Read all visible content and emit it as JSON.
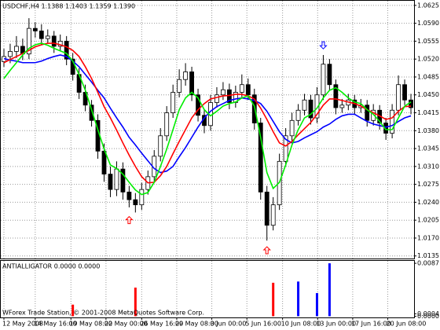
{
  "chart_data": [
    {
      "type": "candlestick",
      "title": "USDCHF,H4 1.1388 1.1403 1.1359 1.1390",
      "x": [
        0,
        1,
        2,
        3,
        4,
        5,
        6,
        7,
        8,
        9,
        10,
        11,
        12,
        13,
        14,
        15,
        16,
        17,
        18,
        19,
        20,
        21,
        22,
        23,
        24,
        25,
        26,
        27,
        28,
        29,
        30,
        31,
        32,
        33,
        34,
        35,
        36,
        37,
        38,
        39,
        40,
        41,
        42,
        43,
        44,
        45,
        46,
        47,
        48,
        49,
        50,
        51,
        52,
        53,
        54,
        55,
        56,
        57,
        58,
        59,
        60,
        61,
        62,
        63,
        64,
        65
      ],
      "open": [
        1.0515,
        1.0525,
        1.0535,
        1.0545,
        1.053,
        1.058,
        1.0575,
        1.056,
        1.0565,
        1.0545,
        1.0555,
        1.052,
        1.049,
        1.0455,
        1.043,
        1.04,
        1.034,
        1.0295,
        1.0265,
        1.0305,
        1.026,
        1.0245,
        1.0235,
        1.0265,
        1.029,
        1.033,
        1.037,
        1.0415,
        1.0455,
        1.048,
        1.0495,
        1.045,
        1.041,
        1.039,
        1.0435,
        1.045,
        1.046,
        1.0435,
        1.0455,
        1.047,
        1.045,
        1.0395,
        1.026,
        1.0195,
        1.0235,
        1.032,
        1.037,
        1.04,
        1.042,
        1.044,
        1.0405,
        1.045,
        1.051,
        1.047,
        1.0425,
        1.043,
        1.044,
        1.0425,
        1.043,
        1.04,
        1.042,
        1.0395,
        1.0375,
        1.042,
        1.047,
        1.044
      ],
      "high": [
        1.054,
        1.055,
        1.0565,
        1.056,
        1.06,
        1.0592,
        1.0588,
        1.0578,
        1.0575,
        1.0568,
        1.0565,
        1.0532,
        1.0502,
        1.047,
        1.044,
        1.0412,
        1.0355,
        1.031,
        1.032,
        1.0318,
        1.0272,
        1.0258,
        1.0278,
        1.0302,
        1.0342,
        1.0385,
        1.0428,
        1.047,
        1.05,
        1.0512,
        1.0505,
        1.0462,
        1.0422,
        1.045,
        1.0465,
        1.0475,
        1.0472,
        1.0468,
        1.049,
        1.0482,
        1.0462,
        1.0405,
        1.0272,
        1.025,
        1.0335,
        1.0385,
        1.0415,
        1.0432,
        1.0452,
        1.045,
        1.0465,
        1.0528,
        1.052,
        1.048,
        1.0442,
        1.0452,
        1.045,
        1.0442,
        1.044,
        1.0432,
        1.043,
        1.0405,
        1.0432,
        1.0488,
        1.048,
        1.0452
      ],
      "low": [
        1.0505,
        1.0512,
        1.0522,
        1.0518,
        1.052,
        1.0562,
        1.0548,
        1.055,
        1.0532,
        1.0535,
        1.0508,
        1.0478,
        1.0442,
        1.0418,
        1.0388,
        1.0325,
        1.028,
        1.025,
        1.0252,
        1.0245,
        1.023,
        1.022,
        1.0225,
        1.0255,
        1.028,
        1.032,
        1.036,
        1.0405,
        1.0445,
        1.0468,
        1.0438,
        1.0398,
        1.0375,
        1.038,
        1.0425,
        1.044,
        1.0422,
        1.0425,
        1.0445,
        1.044,
        1.0382,
        1.0245,
        1.0165,
        1.0185,
        1.0225,
        1.031,
        1.036,
        1.039,
        1.041,
        1.0392,
        1.0395,
        1.044,
        1.0458,
        1.0412,
        1.0415,
        1.042,
        1.0412,
        1.0415,
        1.0388,
        1.039,
        1.0382,
        1.0362,
        1.0365,
        1.041,
        1.043,
        1.0412
      ],
      "close": [
        1.0525,
        1.0535,
        1.0545,
        1.053,
        1.058,
        1.0575,
        1.056,
        1.0565,
        1.0545,
        1.0555,
        1.052,
        1.049,
        1.0455,
        1.043,
        1.04,
        1.034,
        1.0295,
        1.0265,
        1.0305,
        1.026,
        1.0245,
        1.0235,
        1.0265,
        1.029,
        1.033,
        1.037,
        1.0415,
        1.0455,
        1.048,
        1.0495,
        1.045,
        1.041,
        1.039,
        1.0435,
        1.045,
        1.046,
        1.0435,
        1.0455,
        1.047,
        1.045,
        1.0395,
        1.026,
        1.0195,
        1.0235,
        1.032,
        1.037,
        1.04,
        1.042,
        1.044,
        1.0405,
        1.045,
        1.051,
        1.047,
        1.0425,
        1.043,
        1.044,
        1.0425,
        1.043,
        1.04,
        1.042,
        1.0395,
        1.0375,
        1.042,
        1.047,
        1.044,
        1.0425
      ],
      "series": [
        {
          "color": "#0000ff",
          "values": [
            1.0521,
            1.0518,
            1.0516,
            1.0513,
            1.0513,
            1.0513,
            1.0516,
            1.0521,
            1.0525,
            1.0528,
            1.0525,
            1.0516,
            1.0505,
            1.049,
            1.0475,
            1.0459,
            1.0444,
            1.0424,
            1.0405,
            1.0387,
            1.0367,
            1.0352,
            1.0336,
            1.0321,
            1.0306,
            1.0298,
            1.0301,
            1.031,
            1.0329,
            1.0347,
            1.0367,
            1.0387,
            1.0405,
            1.0418,
            1.0427,
            1.0433,
            1.0439,
            1.0442,
            1.0444,
            1.0442,
            1.0439,
            1.0433,
            1.0418,
            1.0398,
            1.0378,
            1.0363,
            1.0356,
            1.0359,
            1.0366,
            1.0372,
            1.0378,
            1.0387,
            1.0393,
            1.0402,
            1.0409,
            1.0412,
            1.0412,
            1.0405,
            1.0398,
            1.0393,
            1.039,
            1.0387,
            1.039,
            1.0398,
            1.0405,
            1.0409
          ]
        },
        {
          "color": "#ff0000",
          "values": [
            1.0513,
            1.0519,
            1.0525,
            1.0531,
            1.0537,
            1.0544,
            1.0548,
            1.0551,
            1.0551,
            1.0548,
            1.0544,
            1.0537,
            1.0525,
            1.0505,
            1.0482,
            1.0455,
            1.0427,
            1.0405,
            1.0381,
            1.0356,
            1.0332,
            1.031,
            1.029,
            1.0278,
            1.0279,
            1.0292,
            1.031,
            1.0335,
            1.0359,
            1.0382,
            1.0405,
            1.0421,
            1.0433,
            1.0442,
            1.0445,
            1.0448,
            1.0449,
            1.0451,
            1.0451,
            1.0448,
            1.0442,
            1.0424,
            1.0402,
            1.0378,
            1.0356,
            1.035,
            1.0359,
            1.0372,
            1.0384,
            1.0396,
            1.0412,
            1.043,
            1.0442,
            1.0442,
            1.0439,
            1.0436,
            1.0433,
            1.0428,
            1.0421,
            1.0415,
            1.0409,
            1.0402,
            1.0405,
            1.0418,
            1.0427,
            1.0428
          ]
        },
        {
          "color": "#00ee00",
          "values": [
            1.0482,
            1.0498,
            1.0513,
            1.0528,
            1.0541,
            1.0548,
            1.0551,
            1.0547,
            1.0541,
            1.0536,
            1.0531,
            1.0516,
            1.049,
            1.0459,
            1.0421,
            1.0382,
            1.0344,
            1.0313,
            1.0306,
            1.0295,
            1.0279,
            1.0264,
            1.0255,
            1.0259,
            1.0279,
            1.031,
            1.0344,
            1.0382,
            1.0421,
            1.0444,
            1.0455,
            1.0444,
            1.0421,
            1.0409,
            1.0418,
            1.0428,
            1.0433,
            1.0436,
            1.0444,
            1.0448,
            1.0428,
            1.0367,
            1.0298,
            1.0267,
            1.0279,
            1.0313,
            1.0352,
            1.0382,
            1.0405,
            1.0412,
            1.0424,
            1.0444,
            1.0459,
            1.0464,
            1.0455,
            1.0444,
            1.0436,
            1.0433,
            1.0421,
            1.0412,
            1.0398,
            1.0382,
            1.0382,
            1.0405,
            1.0428,
            1.0436
          ]
        }
      ],
      "signals": [
        {
          "x": 20,
          "value": 1.0212,
          "color": "#ff0000",
          "direction": "up"
        },
        {
          "x": 42,
          "value": 1.0153,
          "color": "#ff0000",
          "direction": "up"
        },
        {
          "x": 51,
          "value": 1.054,
          "color": "#0000ff",
          "direction": "down"
        }
      ],
      "xlim": [
        -0.5,
        65.5
      ],
      "xticks": [
        {
          "value": 0,
          "label": "12 May 2008"
        },
        {
          "value": 5,
          "label": "14 May 16:00"
        },
        {
          "value": 10.7,
          "label": "19 May 08:00"
        },
        {
          "value": 16.3,
          "label": "22 May 00:00"
        },
        {
          "value": 22,
          "label": "26 May 16:00"
        },
        {
          "value": 27.6,
          "label": "29 May 08:00"
        },
        {
          "value": 33.2,
          "label": "3 Jun 00:00"
        },
        {
          "value": 38.8,
          "label": "5 Jun 16:00"
        },
        {
          "value": 44.5,
          "label": "10 Jun 08:00"
        },
        {
          "value": 50.1,
          "label": "13 Jun 00:00"
        },
        {
          "value": 55.7,
          "label": "17 Jun 16:00"
        },
        {
          "value": 61.3,
          "label": "20 Jun 08:00"
        }
      ],
      "ylim": [
        1.013,
        1.0634
      ],
      "yticks": [
        1.0625,
        {
          "value": 1.059,
          "label": "1.0590"
        },
        1.0555,
        {
          "value": 1.052,
          "label": "1.0520"
        },
        1.0485,
        {
          "value": 1.045,
          "label": "1.0450"
        },
        1.0415,
        {
          "value": 1.038,
          "label": "1.0380"
        },
        1.0345,
        {
          "value": 1.031,
          "label": "1.0310"
        },
        1.0275,
        {
          "value": 1.024,
          "label": "1.0240"
        },
        1.0205,
        {
          "value": 1.017,
          "label": "1.0170"
        },
        1.0135
      ],
      "grid": true
    },
    {
      "type": "bar",
      "title": "ANTIALLIGATOR 0.0000 0.0000",
      "bars": [
        {
          "x": 11,
          "value": 0.0019,
          "color": "#ff0000"
        },
        {
          "x": 21,
          "value": 0.0047,
          "color": "#ff0000"
        },
        {
          "x": 43,
          "value": 0.0055,
          "color": "#ff0000"
        },
        {
          "x": 47,
          "value": 0.0057,
          "color": "#0000ff"
        },
        {
          "x": 50,
          "value": 0.0038,
          "color": "#0000ff"
        },
        {
          "x": 52,
          "value": 0.0087,
          "color": "#0000ff"
        }
      ],
      "xlim": [
        -0.5,
        65.5
      ],
      "ylim": [
        -0.0002,
        0.0091
      ],
      "yticks": [
        0.0087,
        0.0004,
        {
          "value": 0,
          "label": "0.0000"
        }
      ]
    }
  ],
  "footer": "WForex Trade Station, © 2001-2008 MetaQuotes Software Corp."
}
